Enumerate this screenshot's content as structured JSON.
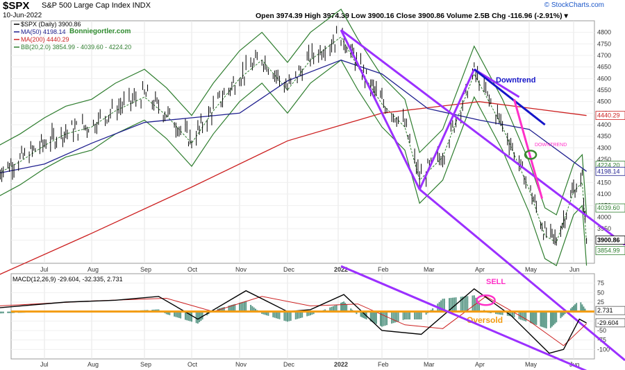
{
  "header": {
    "symbol": "$SPX",
    "description": "S&P 500 Large Cap Index INDX",
    "date": "10-Jun-2022",
    "quote": "Open 3974.39  High 3974.39  Low 3900.16  Close 3900.86  Volume 2.5B  Chg -116.96 (-2.91%) ▾",
    "brand": "© StockCharts.com"
  },
  "colors": {
    "price": "#000000",
    "ma50": "#1f1f8f",
    "ma200": "#cc1f1f",
    "bollinger": "#2e7d2e",
    "channel": "#9b30ff",
    "downtrend_blue": "#1515c8",
    "downtrend_pink": "#ff30c8",
    "zero_line": "#f39c12",
    "histogram": "#5f9b8a"
  },
  "chart_data": [
    {
      "type": "line",
      "title": "$SPX (Daily) 3900.86",
      "legend": [
        {
          "label": "$SPX (Daily) 3900.86",
          "color": "#000000"
        },
        {
          "label": "MA(50) 4198.14",
          "color": "#1f1f8f"
        },
        {
          "label": "MA(200) 4440.29",
          "color": "#cc1f1f"
        },
        {
          "label": "BB(20,2.0) 3854.99 - 4039.60 - 4224.20",
          "color": "#2e7d2e"
        }
      ],
      "legend_placement": "top-left",
      "watermark": "Bonniegortler.com",
      "x_tick_labels": [
        "Jul",
        "Aug",
        "Sep",
        "Oct",
        "Nov",
        "Dec",
        "2022",
        "Feb",
        "Mar",
        "Apr",
        "May",
        "Jun"
      ],
      "y_tick_labels": [
        3900,
        3950,
        4000,
        4050,
        4100,
        4150,
        4200,
        4250,
        4300,
        4350,
        4400,
        4450,
        4500,
        4550,
        4600,
        4650,
        4700,
        4750,
        4800
      ],
      "ylim": [
        3800,
        4850
      ],
      "price_labels": [
        "4440.29",
        "4224.20",
        "4198.14",
        "4039.60",
        "3900.86",
        "3854.99"
      ],
      "annotations": [
        "Downtrend",
        "DOWNTREND"
      ],
      "series": [
        {
          "name": "$SPX",
          "points": [
            [
              "2021-06-01",
              4200
            ],
            [
              "2021-06-15",
              4250
            ],
            [
              "2021-07-01",
              4320
            ],
            [
              "2021-07-15",
              4370
            ],
            [
              "2021-08-01",
              4400
            ],
            [
              "2021-08-15",
              4470
            ],
            [
              "2021-09-01",
              4530
            ],
            [
              "2021-09-15",
              4450
            ],
            [
              "2021-10-01",
              4330
            ],
            [
              "2021-10-15",
              4470
            ],
            [
              "2021-11-01",
              4610
            ],
            [
              "2021-11-15",
              4690
            ],
            [
              "2021-12-01",
              4560
            ],
            [
              "2021-12-15",
              4690
            ],
            [
              "2022-01-03",
              4790
            ],
            [
              "2022-01-15",
              4660
            ],
            [
              "2022-02-01",
              4500
            ],
            [
              "2022-02-15",
              4400
            ],
            [
              "2022-02-24",
              4170
            ],
            [
              "2022-03-10",
              4270
            ],
            [
              "2022-03-29",
              4630
            ],
            [
              "2022-04-15",
              4400
            ],
            [
              "2022-05-01",
              4130
            ],
            [
              "2022-05-12",
              3930
            ],
            [
              "2022-05-20",
              3900
            ],
            [
              "2022-06-01",
              4120
            ],
            [
              "2022-06-07",
              4160
            ],
            [
              "2022-06-10",
              3900
            ]
          ]
        },
        {
          "name": "MA(50)",
          "points": [
            [
              "2021-06-01",
              4190
            ],
            [
              "2021-07-01",
              4230
            ],
            [
              "2021-08-01",
              4320
            ],
            [
              "2021-09-01",
              4410
            ],
            [
              "2021-10-01",
              4430
            ],
            [
              "2021-11-01",
              4450
            ],
            [
              "2021-12-01",
              4590
            ],
            [
              "2022-01-03",
              4680
            ],
            [
              "2022-02-01",
              4620
            ],
            [
              "2022-03-01",
              4470
            ],
            [
              "2022-04-01",
              4420
            ],
            [
              "2022-05-01",
              4380
            ],
            [
              "2022-06-10",
              4198
            ]
          ]
        },
        {
          "name": "MA(200)",
          "points": [
            [
              "2021-06-01",
              3750
            ],
            [
              "2021-08-01",
              3930
            ],
            [
              "2021-10-01",
              4130
            ],
            [
              "2021-12-01",
              4330
            ],
            [
              "2022-02-01",
              4450
            ],
            [
              "2022-04-01",
              4500
            ],
            [
              "2022-06-10",
              4440
            ]
          ]
        }
      ]
    },
    {
      "type": "bar",
      "title": "MACD(12,26,9) -29.604, -32.335, 2.731",
      "legend": [
        {
          "label": "MACD(12,26,9)",
          "color": "#000000"
        },
        {
          "label": "-29.604",
          "color": "#000000"
        },
        {
          "label": "-32.335",
          "color": "#cc1f1f"
        },
        {
          "label": "2.731",
          "color": "#5f9b8a"
        }
      ],
      "x_tick_labels": [
        "Jul",
        "Aug",
        "Sep",
        "Oct",
        "Nov",
        "Dec",
        "2022",
        "Feb",
        "Mar",
        "Apr",
        "May",
        "Jun"
      ],
      "y_tick_labels": [
        75,
        50,
        25,
        -25,
        -50,
        -75,
        -100
      ],
      "ylim": [
        -125,
        100
      ],
      "price_labels": [
        "2.731",
        "-29.604"
      ],
      "annotations": [
        "SELL",
        "Oversold"
      ],
      "series": [
        {
          "name": "MACD",
          "points": [
            [
              "2021-06-01",
              10
            ],
            [
              "2021-07-15",
              25
            ],
            [
              "2021-08-15",
              30
            ],
            [
              "2021-09-10",
              40
            ],
            [
              "2021-10-05",
              -20
            ],
            [
              "2021-11-05",
              55
            ],
            [
              "2021-12-01",
              0
            ],
            [
              "2021-12-15",
              5
            ],
            [
              "2022-01-05",
              45
            ],
            [
              "2022-02-01",
              -50
            ],
            [
              "2022-02-25",
              -60
            ],
            [
              "2022-03-29",
              60
            ],
            [
              "2022-04-20",
              -10
            ],
            [
              "2022-05-15",
              -110
            ],
            [
              "2022-05-25",
              -100
            ],
            [
              "2022-06-05",
              -20
            ],
            [
              "2022-06-10",
              -30
            ]
          ]
        },
        {
          "name": "Signal",
          "points": [
            [
              "2021-06-01",
              15
            ],
            [
              "2021-08-01",
              28
            ],
            [
              "2021-09-15",
              35
            ],
            [
              "2021-10-15",
              0
            ],
            [
              "2021-11-15",
              40
            ],
            [
              "2021-12-15",
              15
            ],
            [
              "2022-01-15",
              20
            ],
            [
              "2022-02-15",
              -35
            ],
            [
              "2022-03-10",
              -45
            ],
            [
              "2022-04-05",
              40
            ],
            [
              "2022-05-01",
              -25
            ],
            [
              "2022-05-25",
              -90
            ],
            [
              "2022-06-10",
              -32
            ]
          ]
        }
      ]
    }
  ]
}
